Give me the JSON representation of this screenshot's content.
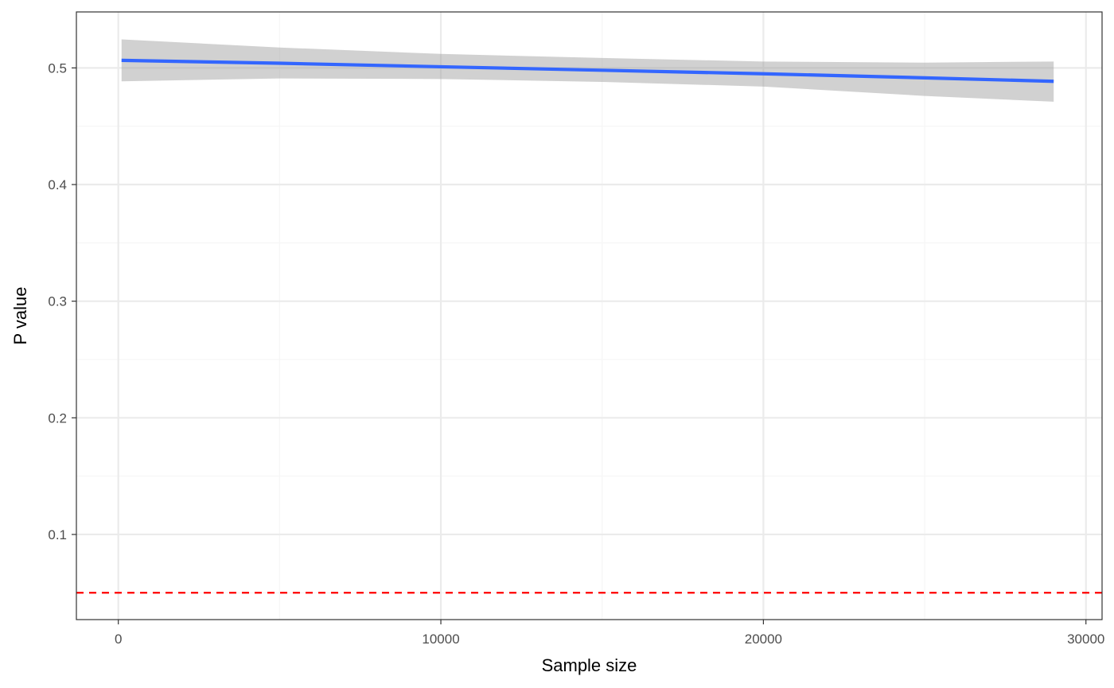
{
  "chart_data": {
    "type": "line",
    "xlabel": "Sample size",
    "ylabel": "P value",
    "xlim": [
      -1300,
      30500
    ],
    "ylim": [
      0.027,
      0.548
    ],
    "x_ticks": [
      0,
      10000,
      20000,
      30000
    ],
    "x_tick_labels": [
      "0",
      "10000",
      "20000",
      "30000"
    ],
    "x_minor_ticks": [
      5000,
      15000,
      25000
    ],
    "y_ticks": [
      0.1,
      0.2,
      0.3,
      0.4,
      0.5
    ],
    "y_tick_labels": [
      "0.1",
      "0.2",
      "0.3",
      "0.4",
      "0.5"
    ],
    "y_minor_ticks": [
      0.05,
      0.15,
      0.25,
      0.35,
      0.45
    ],
    "grid": true,
    "series": [
      {
        "kind": "smooth",
        "color": "#3366FF",
        "x": [
          100,
          5000,
          10000,
          15000,
          20000,
          25000,
          29000
        ],
        "y": [
          0.5065,
          0.504,
          0.501,
          0.498,
          0.495,
          0.4915,
          0.4885
        ],
        "lower": [
          0.4885,
          0.491,
          0.4905,
          0.488,
          0.484,
          0.476,
          0.471
        ],
        "upper": [
          0.5245,
          0.5175,
          0.512,
          0.5085,
          0.5055,
          0.5045,
          0.5055
        ]
      }
    ],
    "hlines": [
      {
        "y": 0.05,
        "color": "#FF0000",
        "style": "dashed"
      }
    ],
    "colors": {
      "ribbon": "#999999",
      "grid_major": "#EBEBEB",
      "grid_minor": "#F5F5F5",
      "panel_border": "#333333"
    }
  }
}
